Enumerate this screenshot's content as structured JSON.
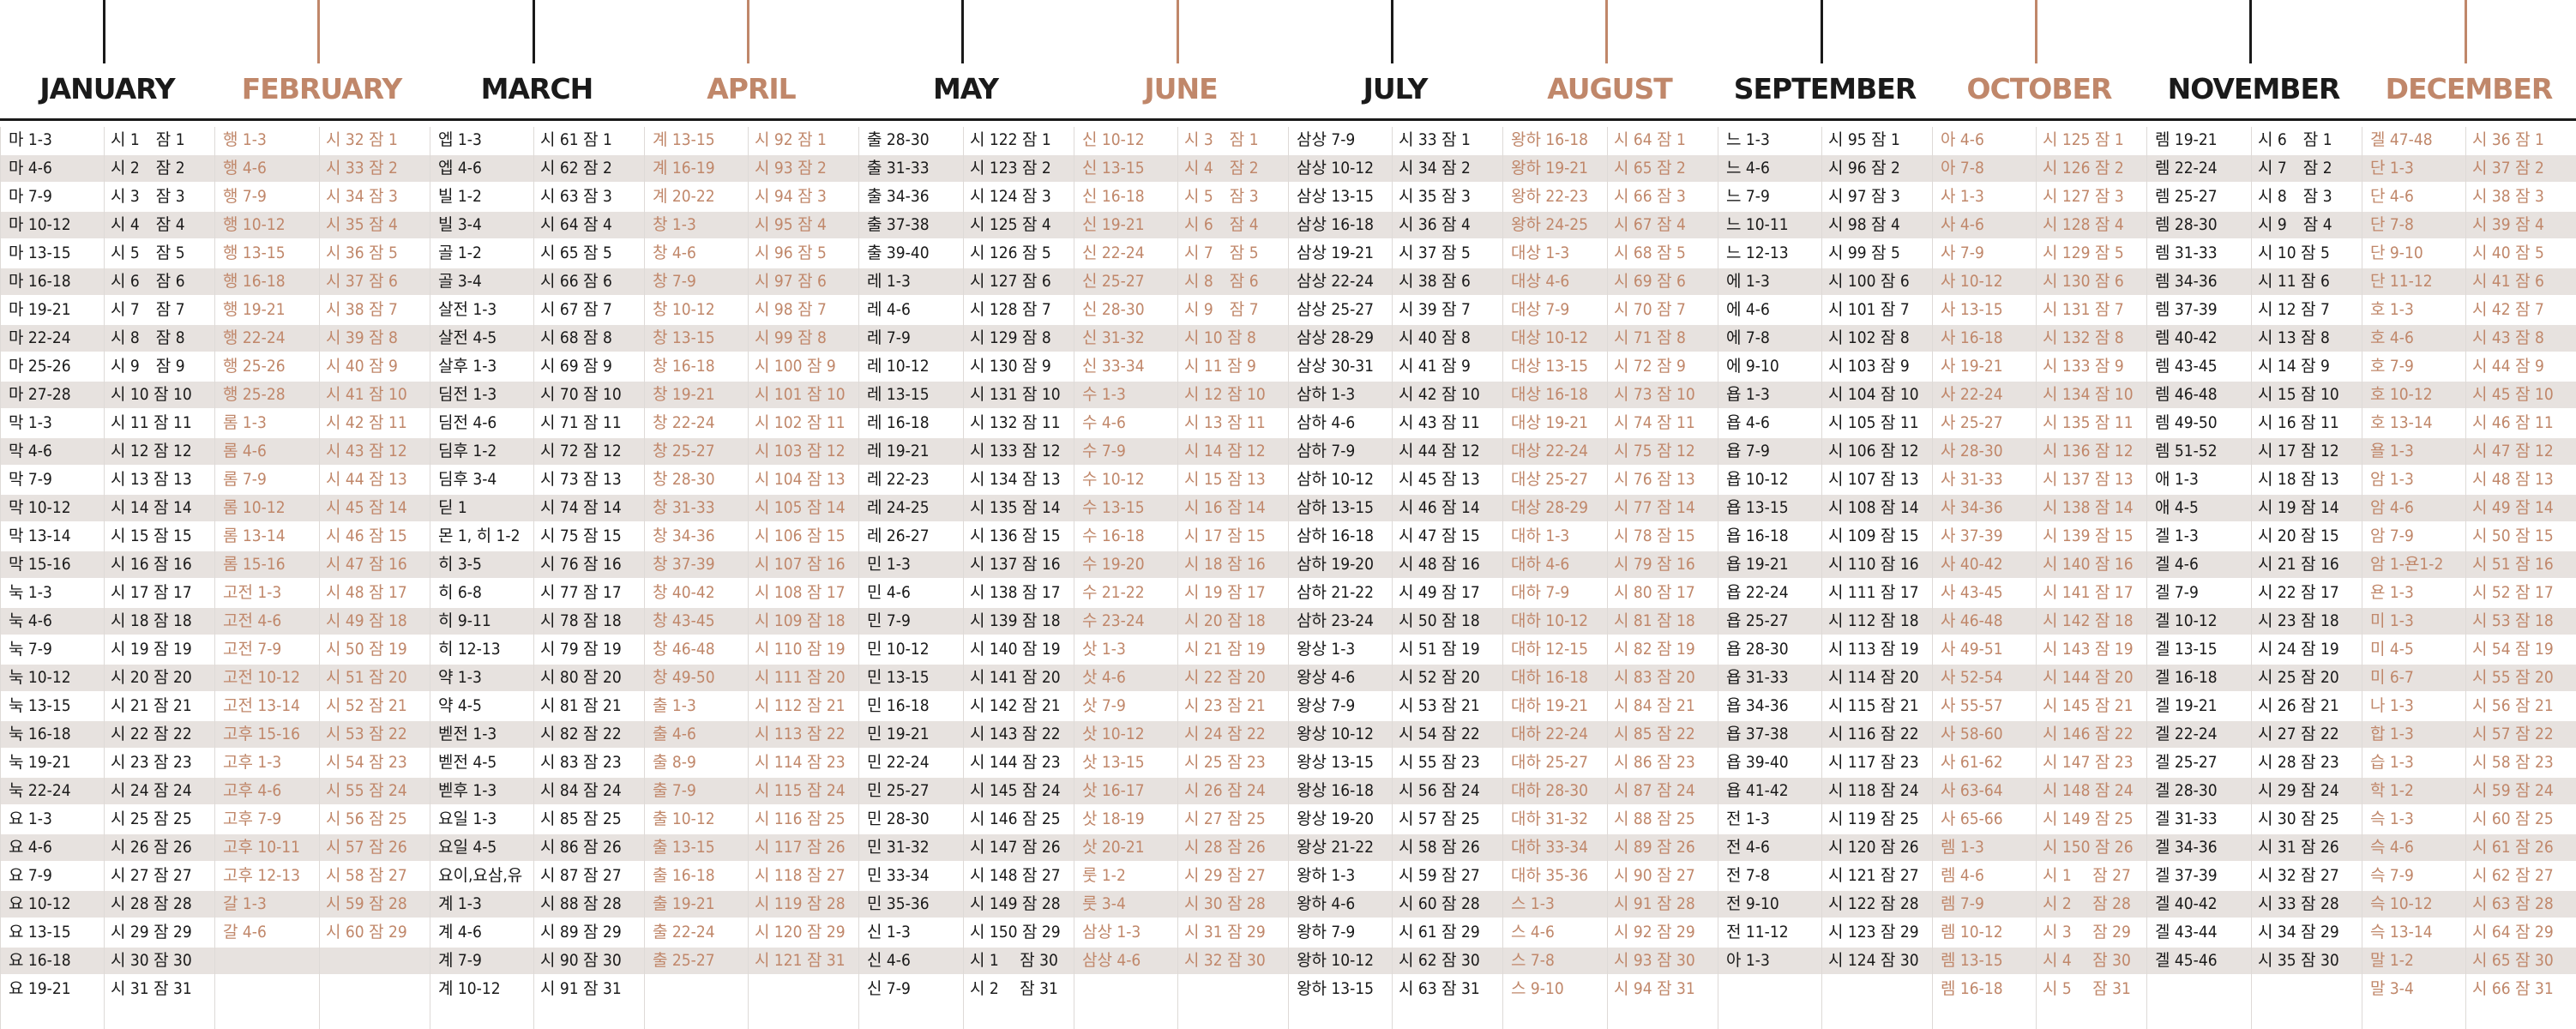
{
  "colors": {
    "dark": "#1a1a1a",
    "accent": "#c0876a",
    "band": "#e7e2df"
  },
  "months": [
    {
      "name": "JANUARY",
      "col1": [
        "마 1-3",
        "마 4-6",
        "마 7-9",
        "마 10-12",
        "마 13-15",
        "마 16-18",
        "마 19-21",
        "마 22-24",
        "마 25-26",
        "마 27-28",
        "막 1-3",
        "막 4-6",
        "막 7-9",
        "막 10-12",
        "막 13-14",
        "막 15-16",
        "눅 1-3",
        "눅 4-6",
        "눅 7-9",
        "눅 10-12",
        "눅 13-15",
        "눅 16-18",
        "눅 19-21",
        "눅 22-24",
        "요 1-3",
        "요 4-6",
        "요 7-9",
        "요 10-12",
        "요 13-15",
        "요 16-18",
        "요 19-21"
      ],
      "col2": [
        "시 1　잠 1",
        "시 2　잠 2",
        "시 3　잠 3",
        "시 4　잠 4",
        "시 5　잠 5",
        "시 6　잠 6",
        "시 7　잠 7",
        "시 8　잠 8",
        "시 9　잠 9",
        "시 10 잠 10",
        "시 11 잠 11",
        "시 12 잠 12",
        "시 13 잠 13",
        "시 14 잠 14",
        "시 15 잠 15",
        "시 16 잠 16",
        "시 17 잠 17",
        "시 18 잠 18",
        "시 19 잠 19",
        "시 20 잠 20",
        "시 21 잠 21",
        "시 22 잠 22",
        "시 23 잠 23",
        "시 24 잠 24",
        "시 25 잠 25",
        "시 26 잠 26",
        "시 27 잠 27",
        "시 28 잠 28",
        "시 29 잠 29",
        "시 30 잠 30",
        "시 31 잠 31"
      ]
    },
    {
      "name": "FEBRUARY",
      "col1": [
        "행 1-3",
        "행 4-6",
        "행 7-9",
        "행 10-12",
        "행 13-15",
        "행 16-18",
        "행 19-21",
        "행 22-24",
        "행 25-26",
        "행 25-28",
        "롬 1-3",
        "롬 4-6",
        "롬 7-9",
        "롬 10-12",
        "롬 13-14",
        "롬 15-16",
        "고전 1-3",
        "고전 4-6",
        "고전 7-9",
        "고전 10-12",
        "고전 13-14",
        "고후 15-16",
        "고후 1-3",
        "고후 4-6",
        "고후 7-9",
        "고후 10-11",
        "고후 12-13",
        "갈 1-3",
        "갈 4-6"
      ],
      "col2": [
        "시 32 잠 1",
        "시 33 잠 2",
        "시 34 잠 3",
        "시 35 잠 4",
        "시 36 잠 5",
        "시 37 잠 6",
        "시 38 잠 7",
        "시 39 잠 8",
        "시 40 잠 9",
        "시 41 잠 10",
        "시 42 잠 11",
        "시 43 잠 12",
        "시 44 잠 13",
        "시 45 잠 14",
        "시 46 잠 15",
        "시 47 잠 16",
        "시 48 잠 17",
        "시 49 잠 18",
        "시 50 잠 19",
        "시 51 잠 20",
        "시 52 잠 21",
        "시 53 잠 22",
        "시 54 잠 23",
        "시 55 잠 24",
        "시 56 잠 25",
        "시 57 잠 26",
        "시 58 잠 27",
        "시 59 잠 28",
        "시 60 잠 29"
      ]
    },
    {
      "name": "MARCH",
      "col1": [
        "엡 1-3",
        "엡 4-6",
        "빌 1-2",
        "빌 3-4",
        "골 1-2",
        "골 3-4",
        "살전 1-3",
        "살전 4-5",
        "살후 1-3",
        "딤전 1-3",
        "딤전 4-6",
        "딤후 1-2",
        "딤후 3-4",
        "딛 1",
        "몬 1, 히 1-2",
        "히 3-5",
        "히 6-8",
        "히 9-11",
        "히 12-13",
        "약 1-3",
        "약 4-5",
        "벧전 1-3",
        "벧전 4-5",
        "벧후 1-3",
        "요일 1-3",
        "요일 4-5",
        "요이,요삼,유",
        "계 1-3",
        "계 4-6",
        "계 7-9",
        "계 10-12"
      ],
      "col2": [
        "시 61 잠 1",
        "시 62 잠 2",
        "시 63 잠 3",
        "시 64 잠 4",
        "시 65 잠 5",
        "시 66 잠 6",
        "시 67 잠 7",
        "시 68 잠 8",
        "시 69 잠 9",
        "시 70 잠 10",
        "시 71 잠 11",
        "시 72 잠 12",
        "시 73 잠 13",
        "시 74 잠 14",
        "시 75 잠 15",
        "시 76 잠 16",
        "시 77 잠 17",
        "시 78 잠 18",
        "시 79 잠 19",
        "시 80 잠 20",
        "시 81 잠 21",
        "시 82 잠 22",
        "시 83 잠 23",
        "시 84 잠 24",
        "시 85 잠 25",
        "시 86 잠 26",
        "시 87 잠 27",
        "시 88 잠 28",
        "시 89 잠 29",
        "시 90 잠 30",
        "시 91 잠 31"
      ]
    },
    {
      "name": "APRIL",
      "col1": [
        "계 13-15",
        "계 16-19",
        "계 20-22",
        "창 1-3",
        "창 4-6",
        "창 7-9",
        "창 10-12",
        "창 13-15",
        "창 16-18",
        "창 19-21",
        "창 22-24",
        "창 25-27",
        "창 28-30",
        "창 31-33",
        "창 34-36",
        "창 37-39",
        "창 40-42",
        "창 43-45",
        "창 46-48",
        "창 49-50",
        "출 1-3",
        "출 4-6",
        "출 8-9",
        "출 7-9",
        "출 10-12",
        "출 13-15",
        "출 16-18",
        "출 19-21",
        "출 22-24",
        "출 25-27"
      ],
      "col2": [
        "시 92 잠 1",
        "시 93 잠 2",
        "시 94 잠 3",
        "시 95 잠 4",
        "시 96 잠 5",
        "시 97 잠 6",
        "시 98 잠 7",
        "시 99 잠 8",
        "시 100 잠 9",
        "시 101 잠 10",
        "시 102 잠 11",
        "시 103 잠 12",
        "시 104 잠 13",
        "시 105 잠 14",
        "시 106 잠 15",
        "시 107 잠 16",
        "시 108 잠 17",
        "시 109 잠 18",
        "시 110 잠 19",
        "시 111 잠 20",
        "시 112 잠 21",
        "시 113 잠 22",
        "시 114 잠 23",
        "시 115 잠 24",
        "시 116 잠 25",
        "시 117 잠 26",
        "시 118 잠 27",
        "시 119 잠 28",
        "시 120 잠 29",
        "시 121 잠 31"
      ]
    },
    {
      "name": "MAY",
      "col1": [
        "출 28-30",
        "출 31-33",
        "출 34-36",
        "출 37-38",
        "출 39-40",
        "레 1-3",
        "레 4-6",
        "레 7-9",
        "레 10-12",
        "레 13-15",
        "레 16-18",
        "레 19-21",
        "레 22-23",
        "레 24-25",
        "레 26-27",
        "민 1-3",
        "민 4-6",
        "민 7-9",
        "민 10-12",
        "민 13-15",
        "민 16-18",
        "민 19-21",
        "민 22-24",
        "민 25-27",
        "민 28-30",
        "민 31-32",
        "민 33-34",
        "민 35-36",
        "신 1-3",
        "신 4-6",
        "신 7-9"
      ],
      "col2": [
        "시 122 잠 1",
        "시 123 잠 2",
        "시 124 잠 3",
        "시 125 잠 4",
        "시 126 잠 5",
        "시 127 잠 6",
        "시 128 잠 7",
        "시 129 잠 8",
        "시 130 잠 9",
        "시 131 잠 10",
        "시 132 잠 11",
        "시 133 잠 12",
        "시 134 잠 13",
        "시 135 잠 14",
        "시 136 잠 15",
        "시 137 잠 16",
        "시 138 잠 17",
        "시 139 잠 18",
        "시 140 잠 19",
        "시 141 잠 20",
        "시 142 잠 21",
        "시 143 잠 22",
        "시 144 잠 23",
        "시 145 잠 24",
        "시 146 잠 25",
        "시 147 잠 26",
        "시 148 잠 27",
        "시 149 잠 28",
        "시 150 잠 29",
        "시 1　 잠 30",
        "시 2　 잠 31"
      ]
    },
    {
      "name": "JUNE",
      "col1": [
        "신 10-12",
        "신 13-15",
        "신 16-18",
        "신 19-21",
        "신 22-24",
        "신 25-27",
        "신 28-30",
        "신 31-32",
        "신 33-34",
        "수 1-3",
        "수 4-6",
        "수 7-9",
        "수 10-12",
        "수 13-15",
        "수 16-18",
        "수 19-20",
        "수 21-22",
        "수 23-24",
        "삿 1-3",
        "삿 4-6",
        "삿 7-9",
        "삿 10-12",
        "삿 13-15",
        "삿 16-17",
        "삿 18-19",
        "삿 20-21",
        "룻 1-2",
        "룻 3-4",
        "삼상 1-3",
        "삼상 4-6"
      ],
      "col2": [
        "시 3　잠 1",
        "시 4　잠 2",
        "시 5　잠 3",
        "시 6　잠 4",
        "시 7　잠 5",
        "시 8　잠 6",
        "시 9　잠 7",
        "시 10 잠 8",
        "시 11 잠 9",
        "시 12 잠 10",
        "시 13 잠 11",
        "시 14 잠 12",
        "시 15 잠 13",
        "시 16 잠 14",
        "시 17 잠 15",
        "시 18 잠 16",
        "시 19 잠 17",
        "시 20 잠 18",
        "시 21 잠 19",
        "시 22 잠 20",
        "시 23 잠 21",
        "시 24 잠 22",
        "시 25 잠 23",
        "시 26 잠 24",
        "시 27 잠 25",
        "시 28 잠 26",
        "시 29 잠 27",
        "시 30 잠 28",
        "시 31 잠 29",
        "시 32 잠 30"
      ]
    },
    {
      "name": "JULY",
      "col1": [
        "삼상 7-9",
        "삼상 10-12",
        "삼상 13-15",
        "삼상 16-18",
        "삼상 19-21",
        "삼상 22-24",
        "삼상 25-27",
        "삼상 28-29",
        "삼상 30-31",
        "삼하 1-3",
        "삼하 4-6",
        "삼하 7-9",
        "삼하 10-12",
        "삼하 13-15",
        "삼하 16-18",
        "삼하 19-20",
        "삼하 21-22",
        "삼하 23-24",
        "왕상 1-3",
        "왕상 4-6",
        "왕상 7-9",
        "왕상 10-12",
        "왕상 13-15",
        "왕상 16-18",
        "왕상 19-20",
        "왕상 21-22",
        "왕하 1-3",
        "왕하 4-6",
        "왕하 7-9",
        "왕하 10-12",
        "왕하 13-15"
      ],
      "col2": [
        "시 33 잠 1",
        "시 34 잠 2",
        "시 35 잠 3",
        "시 36 잠 4",
        "시 37 잠 5",
        "시 38 잠 6",
        "시 39 잠 7",
        "시 40 잠 8",
        "시 41 잠 9",
        "시 42 잠 10",
        "시 43 잠 11",
        "시 44 잠 12",
        "시 45 잠 13",
        "시 46 잠 14",
        "시 47 잠 15",
        "시 48 잠 16",
        "시 49 잠 17",
        "시 50 잠 18",
        "시 51 잠 19",
        "시 52 잠 20",
        "시 53 잠 21",
        "시 54 잠 22",
        "시 55 잠 23",
        "시 56 잠 24",
        "시 57 잠 25",
        "시 58 잠 26",
        "시 59 잠 27",
        "시 60 잠 28",
        "시 61 잠 29",
        "시 62 잠 30",
        "시 63 잠 31"
      ]
    },
    {
      "name": "AUGUST",
      "col1": [
        "왕하 16-18",
        "왕하 19-21",
        "왕하 22-23",
        "왕하 24-25",
        "대상 1-3",
        "대상 4-6",
        "대상 7-9",
        "대상 10-12",
        "대상 13-15",
        "대상 16-18",
        "대상 19-21",
        "대상 22-24",
        "대상 25-27",
        "대상 28-29",
        "대하 1-3",
        "대하 4-6",
        "대하 7-9",
        "대하 10-12",
        "대하 12-15",
        "대하 16-18",
        "대하 19-21",
        "대하 22-24",
        "대하 25-27",
        "대하 28-30",
        "대하 31-32",
        "대하 33-34",
        "대하 35-36",
        "스 1-3",
        "스 4-6",
        "스 7-8",
        "스 9-10"
      ],
      "col2": [
        "시 64 잠 1",
        "시 65 잠 2",
        "시 66 잠 3",
        "시 67 잠 4",
        "시 68 잠 5",
        "시 69 잠 6",
        "시 70 잠 7",
        "시 71 잠 8",
        "시 72 잠 9",
        "시 73 잠 10",
        "시 74 잠 11",
        "시 75 잠 12",
        "시 76 잠 13",
        "시 77 잠 14",
        "시 78 잠 15",
        "시 79 잠 16",
        "시 80 잠 17",
        "시 81 잠 18",
        "시 82 잠 19",
        "시 83 잠 20",
        "시 84 잠 21",
        "시 85 잠 22",
        "시 86 잠 23",
        "시 87 잠 24",
        "시 88 잠 25",
        "시 89 잠 26",
        "시 90 잠 27",
        "시 91 잠 28",
        "시 92 잠 29",
        "시 93 잠 30",
        "시 94 잠 31"
      ]
    },
    {
      "name": "SEPTEMBER",
      "col1": [
        "느 1-3",
        "느 4-6",
        "느 7-9",
        "느 10-11",
        "느 12-13",
        "에 1-3",
        "에 4-6",
        "에 7-8",
        "에 9-10",
        "욥 1-3",
        "욥 4-6",
        "욥 7-9",
        "욥 10-12",
        "욥 13-15",
        "욥 16-18",
        "욥 19-21",
        "욥 22-24",
        "욥 25-27",
        "욥 28-30",
        "욥 31-33",
        "욥 34-36",
        "욥 37-38",
        "욥 39-40",
        "욥 41-42",
        "전 1-3",
        "전 4-6",
        "전 7-8",
        "전 9-10",
        "전 11-12",
        "아 1-3"
      ],
      "col2": [
        "시 95 잠 1",
        "시 96 잠 2",
        "시 97 잠 3",
        "시 98 잠 4",
        "시 99 잠 5",
        "시 100 잠 6",
        "시 101 잠 7",
        "시 102 잠 8",
        "시 103 잠 9",
        "시 104 잠 10",
        "시 105 잠 11",
        "시 106 잠 12",
        "시 107 잠 13",
        "시 108 잠 14",
        "시 109 잠 15",
        "시 110 잠 16",
        "시 111 잠 17",
        "시 112 잠 18",
        "시 113 잠 19",
        "시 114 잠 20",
        "시 115 잠 21",
        "시 116 잠 22",
        "시 117 잠 23",
        "시 118 잠 24",
        "시 119 잠 25",
        "시 120 잠 26",
        "시 121 잠 27",
        "시 122 잠 28",
        "시 123 잠 29",
        "시 124 잠 30"
      ]
    },
    {
      "name": "OCTOBER",
      "col1": [
        "아 4-6",
        "아 7-8",
        "사 1-3",
        "사 4-6",
        "사 7-9",
        "사 10-12",
        "사 13-15",
        "사 16-18",
        "사 19-21",
        "사 22-24",
        "사 25-27",
        "사 28-30",
        "사 31-33",
        "사 34-36",
        "사 37-39",
        "사 40-42",
        "사 43-45",
        "사 46-48",
        "사 49-51",
        "사 52-54",
        "사 55-57",
        "사 58-60",
        "사 61-62",
        "사 63-64",
        "사 65-66",
        "렘 1-3",
        "렘 4-6",
        "렘 7-9",
        "렘 10-12",
        "렘 13-15",
        "렘 16-18"
      ],
      "col2": [
        "시 125 잠 1",
        "시 126 잠 2",
        "시 127 잠 3",
        "시 128 잠 4",
        "시 129 잠 5",
        "시 130 잠 6",
        "시 131 잠 7",
        "시 132 잠 8",
        "시 133 잠 9",
        "시 134 잠 10",
        "시 135 잠 11",
        "시 136 잠 12",
        "시 137 잠 13",
        "시 138 잠 14",
        "시 139 잠 15",
        "시 140 잠 16",
        "시 141 잠 17",
        "시 142 잠 18",
        "시 143 잠 19",
        "시 144 잠 20",
        "시 145 잠 21",
        "시 146 잠 22",
        "시 147 잠 23",
        "시 148 잠 24",
        "시 149 잠 25",
        "시 150 잠 26",
        "시 1　 잠 27",
        "시 2　 잠 28",
        "시 3　 잠 29",
        "시 4　 잠 30",
        "시 5　 잠 31"
      ]
    },
    {
      "name": "NOVEMBER",
      "col1": [
        "렘 19-21",
        "렘 22-24",
        "렘 25-27",
        "렘 28-30",
        "렘 31-33",
        "렘 34-36",
        "렘 37-39",
        "렘 40-42",
        "렘 43-45",
        "렘 46-48",
        "렘 49-50",
        "렘 51-52",
        "애 1-3",
        "애 4-5",
        "겔 1-3",
        "겔 4-6",
        "겔 7-9",
        "겔 10-12",
        "겔 13-15",
        "겔 16-18",
        "겔 19-21",
        "겔 22-24",
        "겔 25-27",
        "겔 28-30",
        "겔 31-33",
        "겔 34-36",
        "겔 37-39",
        "겔 40-42",
        "겔 43-44",
        "겔 45-46"
      ],
      "col2": [
        "시 6　잠 1",
        "시 7　잠 2",
        "시 8　잠 3",
        "시 9　잠 4",
        "시 10 잠 5",
        "시 11 잠 6",
        "시 12 잠 7",
        "시 13 잠 8",
        "시 14 잠 9",
        "시 15 잠 10",
        "시 16 잠 11",
        "시 17 잠 12",
        "시 18 잠 13",
        "시 19 잠 14",
        "시 20 잠 15",
        "시 21 잠 16",
        "시 22 잠 17",
        "시 23 잠 18",
        "시 24 잠 19",
        "시 25 잠 20",
        "시 26 잠 21",
        "시 27 잠 22",
        "시 28 잠 23",
        "시 29 잠 24",
        "시 30 잠 25",
        "시 31 잠 26",
        "시 32 잠 27",
        "시 33 잠 28",
        "시 34 잠 29",
        "시 35 잠 30"
      ]
    },
    {
      "name": "DECEMBER",
      "col1": [
        "겔 47-48",
        "단 1-3",
        "단 4-6",
        "단 7-8",
        "단 9-10",
        "단 11-12",
        "호 1-3",
        "호 4-6",
        "호 7-9",
        "호 10-12",
        "호 13-14",
        "욜 1-3",
        "암 1-3",
        "암 4-6",
        "암 7-9",
        "암 1-욘1-2",
        "욘 1-3",
        "미 1-3",
        "미 4-5",
        "미 6-7",
        "나 1-3",
        "합 1-3",
        "습 1-3",
        "학 1-2",
        "슥 1-3",
        "슥 4-6",
        "슥 7-9",
        "슥 10-12",
        "슥 13-14",
        "말 1-2",
        "말 3-4"
      ],
      "col2": [
        "시 36 잠 1",
        "시 37 잠 2",
        "시 38 잠 3",
        "시 39 잠 4",
        "시 40 잠 5",
        "시 41 잠 6",
        "시 42 잠 7",
        "시 43 잠 8",
        "시 44 잠 9",
        "시 45 잠 10",
        "시 46 잠 11",
        "시 47 잠 12",
        "시 48 잠 13",
        "시 49 잠 14",
        "시 50 잠 15",
        "시 51 잠 16",
        "시 52 잠 17",
        "시 53 잠 18",
        "시 54 잠 19",
        "시 55 잠 20",
        "시 56 잠 21",
        "시 57 잠 22",
        "시 58 잠 23",
        "시 59 잠 24",
        "시 60 잠 25",
        "시 61 잠 26",
        "시 62 잠 27",
        "시 63 잠 28",
        "시 64 잠 29",
        "시 65 잠 30",
        "시 66 잠 31"
      ]
    }
  ]
}
